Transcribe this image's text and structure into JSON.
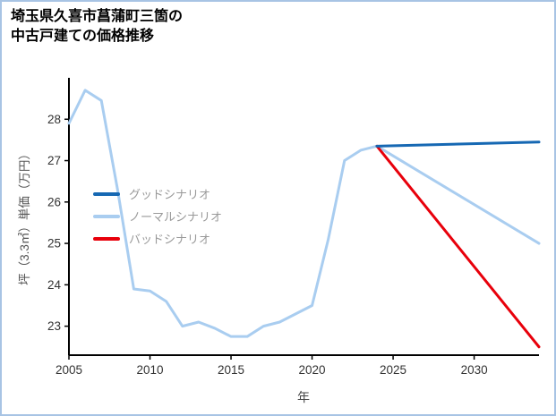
{
  "page": {
    "title_line1": "埼玉県久喜市菖蒲町三箇の",
    "title_line2": "中古戸建ての価格推移",
    "border_color": "#a8c4e4"
  },
  "chart_data": {
    "type": "line",
    "title": "埼玉県久喜市菖蒲町三箇の中古戸建ての価格推移",
    "xlabel": "年",
    "ylabel": "坪（3.3㎡）単価（万円）",
    "xlim": [
      2005,
      2034
    ],
    "ylim": [
      22.3,
      29.0
    ],
    "xticks": [
      2005,
      2010,
      2015,
      2020,
      2025,
      2030
    ],
    "yticks": [
      23,
      24,
      25,
      26,
      27,
      28
    ],
    "grid": false,
    "legend_position": "center-left",
    "axis_color": "#000000",
    "tick_label_color": "#333333",
    "legend_text_color": "#999999",
    "series": [
      {
        "name": "グッドシナリオ",
        "color": "#1668b3",
        "x": [
          2024,
          2034
        ],
        "y": [
          27.35,
          27.45
        ]
      },
      {
        "name": "ノーマルシナリオ",
        "color": "#a9cdf0",
        "x": [
          2005,
          2006,
          2007,
          2008,
          2009,
          2010,
          2011,
          2012,
          2013,
          2014,
          2015,
          2016,
          2017,
          2018,
          2019,
          2020,
          2021,
          2022,
          2023,
          2024,
          2034
        ],
        "y": [
          27.9,
          28.7,
          28.45,
          26.3,
          23.9,
          23.85,
          23.6,
          23.0,
          23.1,
          22.95,
          22.75,
          22.75,
          23.0,
          23.1,
          23.3,
          23.5,
          25.1,
          27.0,
          27.25,
          27.35,
          25.0
        ]
      },
      {
        "name": "バッドシナリオ",
        "color": "#e8000b",
        "x": [
          2024,
          2034
        ],
        "y": [
          27.35,
          22.5
        ]
      }
    ]
  }
}
